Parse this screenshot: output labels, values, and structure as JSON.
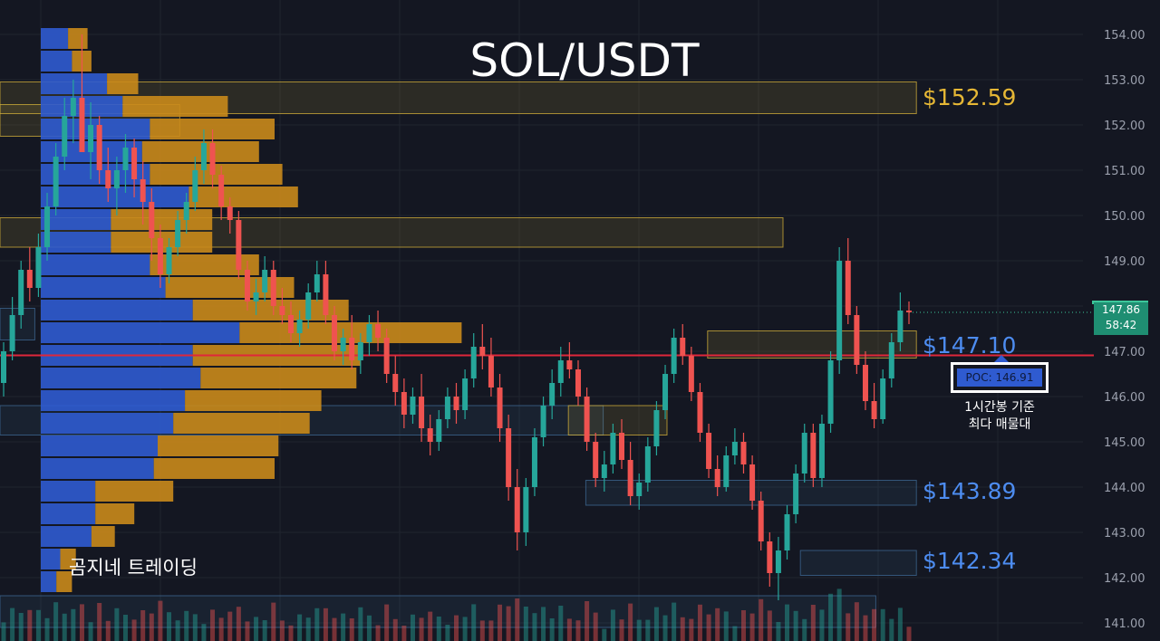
{
  "header": {
    "title": "SOL/USDT"
  },
  "brand": {
    "label": "곰지네 트레이딩"
  },
  "levels": [
    {
      "label": "$152.59",
      "price": 152.59,
      "color": "#e6b735"
    },
    {
      "label": "$147.10",
      "price": 147.1,
      "color": "#4d8cf0"
    },
    {
      "label": "$143.89",
      "price": 143.89,
      "color": "#4d8cf0"
    },
    {
      "label": "$142.34",
      "price": 142.34,
      "color": "#4d8cf0"
    }
  ],
  "poc": {
    "label": "POC: 146.91",
    "price": 146.91,
    "color": "#e0273b",
    "note_line1": "1시간봉 기준",
    "note_line2": "최다 매물대"
  },
  "current_price": {
    "price": "147.86",
    "countdown": "58:42",
    "color": "#1f8e72"
  },
  "colors": {
    "up": "#26a69a",
    "down": "#ef5350",
    "background": "#141722",
    "profile_blue": "#2f5bd0",
    "profile_orange": "#c98a1b",
    "zone_yellow": "#d4b13a",
    "zone_blue": "#3d6a96"
  },
  "chart_data": {
    "type": "candlestick",
    "title": "SOL/USDT",
    "y_axis": {
      "position": "right",
      "ticks": [
        "154.00",
        "153.00",
        "152.00",
        "151.00",
        "150.00",
        "149.00",
        "148.00",
        "147.00",
        "146.00",
        "145.00",
        "144.00",
        "143.00",
        "142.00",
        "141.00"
      ],
      "ylim": [
        140.6,
        154.6
      ]
    },
    "grid": true,
    "candles_ohlc": [
      [
        146.3,
        147.2,
        146.0,
        147.0
      ],
      [
        147.0,
        148.2,
        146.8,
        147.8
      ],
      [
        147.8,
        149.0,
        147.5,
        148.8
      ],
      [
        148.8,
        149.3,
        148.1,
        148.4
      ],
      [
        148.4,
        149.6,
        148.2,
        149.3
      ],
      [
        149.3,
        150.5,
        149.0,
        150.2
      ],
      [
        150.2,
        151.6,
        150.0,
        151.3
      ],
      [
        151.3,
        152.6,
        151.0,
        152.2
      ],
      [
        152.2,
        153.0,
        151.6,
        152.6
      ],
      [
        152.6,
        154.0,
        152.2,
        151.4
      ],
      [
        151.4,
        152.5,
        150.8,
        152.0
      ],
      [
        152.0,
        152.2,
        150.7,
        151.0
      ],
      [
        151.0,
        151.5,
        150.3,
        150.6
      ],
      [
        150.6,
        151.3,
        150.0,
        151.0
      ],
      [
        151.0,
        151.8,
        150.5,
        151.5
      ],
      [
        151.5,
        151.7,
        150.4,
        150.8
      ],
      [
        150.8,
        151.2,
        149.8,
        150.3
      ],
      [
        150.3,
        150.6,
        149.0,
        149.5
      ],
      [
        149.5,
        149.8,
        148.4,
        148.7
      ],
      [
        148.7,
        149.5,
        148.5,
        149.3
      ],
      [
        149.3,
        150.1,
        149.1,
        149.9
      ],
      [
        149.9,
        150.5,
        149.6,
        150.3
      ],
      [
        150.3,
        151.3,
        150.1,
        151.0
      ],
      [
        151.0,
        151.9,
        150.7,
        151.6
      ],
      [
        151.6,
        151.9,
        150.6,
        150.9
      ],
      [
        150.9,
        151.1,
        149.9,
        150.2
      ],
      [
        150.2,
        150.4,
        149.6,
        149.9
      ],
      [
        149.9,
        150.1,
        148.6,
        148.8
      ],
      [
        148.8,
        149.0,
        147.9,
        148.1
      ],
      [
        148.1,
        148.6,
        147.8,
        148.3
      ],
      [
        148.3,
        149.1,
        148.1,
        148.8
      ],
      [
        148.8,
        149.0,
        147.8,
        148.0
      ],
      [
        148.0,
        148.4,
        147.6,
        147.8
      ],
      [
        147.8,
        148.1,
        147.2,
        147.4
      ],
      [
        147.4,
        147.9,
        147.1,
        147.7
      ],
      [
        147.7,
        148.5,
        147.5,
        148.3
      ],
      [
        148.3,
        149.0,
        148.1,
        148.7
      ],
      [
        148.7,
        149.0,
        147.6,
        147.8
      ],
      [
        147.8,
        148.0,
        146.8,
        147.0
      ],
      [
        147.0,
        147.5,
        146.7,
        147.3
      ],
      [
        147.3,
        147.8,
        146.6,
        146.8
      ],
      [
        146.8,
        147.4,
        146.5,
        147.2
      ],
      [
        147.2,
        147.8,
        146.9,
        147.6
      ],
      [
        147.6,
        147.9,
        147.0,
        147.3
      ],
      [
        147.3,
        147.5,
        146.3,
        146.5
      ],
      [
        146.5,
        146.9,
        145.8,
        146.1
      ],
      [
        146.1,
        146.4,
        145.3,
        145.6
      ],
      [
        145.6,
        146.2,
        145.4,
        146.0
      ],
      [
        146.0,
        146.5,
        145.0,
        145.3
      ],
      [
        145.3,
        145.6,
        144.7,
        145.0
      ],
      [
        145.0,
        145.7,
        144.8,
        145.5
      ],
      [
        145.5,
        146.2,
        145.3,
        146.0
      ],
      [
        146.0,
        146.3,
        145.4,
        145.7
      ],
      [
        145.7,
        146.6,
        145.5,
        146.4
      ],
      [
        146.4,
        147.4,
        146.2,
        147.1
      ],
      [
        147.1,
        147.6,
        146.6,
        146.9
      ],
      [
        146.9,
        147.3,
        146.0,
        146.2
      ],
      [
        146.2,
        146.5,
        145.0,
        145.3
      ],
      [
        145.3,
        145.6,
        143.7,
        144.0
      ],
      [
        144.0,
        144.4,
        142.6,
        143.0
      ],
      [
        143.0,
        144.2,
        142.7,
        144.0
      ],
      [
        144.0,
        145.3,
        143.8,
        145.1
      ],
      [
        145.1,
        146.0,
        144.9,
        145.8
      ],
      [
        145.8,
        146.6,
        145.5,
        146.3
      ],
      [
        146.3,
        147.1,
        146.0,
        146.8
      ],
      [
        146.8,
        147.2,
        146.4,
        146.6
      ],
      [
        146.6,
        146.8,
        145.8,
        146.0
      ],
      [
        146.0,
        146.2,
        144.8,
        145.0
      ],
      [
        145.0,
        145.2,
        144.0,
        144.2
      ],
      [
        144.2,
        144.8,
        143.9,
        144.5
      ],
      [
        144.5,
        145.4,
        144.3,
        145.2
      ],
      [
        145.2,
        145.5,
        144.4,
        144.6
      ],
      [
        144.6,
        145.0,
        143.6,
        143.8
      ],
      [
        143.8,
        144.3,
        143.5,
        144.1
      ],
      [
        144.1,
        145.1,
        143.9,
        144.9
      ],
      [
        144.9,
        145.9,
        144.7,
        145.7
      ],
      [
        145.7,
        146.7,
        145.5,
        146.5
      ],
      [
        146.5,
        147.5,
        146.3,
        147.3
      ],
      [
        147.3,
        147.6,
        146.7,
        146.9
      ],
      [
        146.9,
        147.1,
        145.9,
        146.1
      ],
      [
        146.1,
        146.3,
        145.0,
        145.2
      ],
      [
        145.2,
        145.4,
        144.2,
        144.4
      ],
      [
        144.4,
        144.7,
        143.8,
        144.0
      ],
      [
        144.0,
        144.9,
        143.9,
        144.7
      ],
      [
        144.7,
        145.3,
        144.5,
        145.0
      ],
      [
        145.0,
        145.2,
        144.3,
        144.5
      ],
      [
        144.5,
        144.7,
        143.5,
        143.7
      ],
      [
        143.7,
        143.9,
        142.6,
        142.8
      ],
      [
        142.8,
        143.0,
        141.8,
        142.1
      ],
      [
        142.1,
        142.9,
        141.5,
        142.6
      ],
      [
        142.6,
        143.6,
        142.4,
        143.4
      ],
      [
        143.4,
        144.5,
        143.2,
        144.3
      ],
      [
        144.3,
        145.4,
        144.1,
        145.2
      ],
      [
        145.2,
        145.4,
        144.0,
        144.2
      ],
      [
        144.2,
        145.6,
        144.0,
        145.4
      ],
      [
        145.4,
        147.0,
        145.2,
        146.8
      ],
      [
        146.8,
        149.3,
        146.5,
        149.0
      ],
      [
        149.0,
        149.5,
        147.6,
        147.8
      ],
      [
        147.8,
        148.0,
        146.5,
        146.7
      ],
      [
        146.7,
        147.0,
        145.7,
        145.9
      ],
      [
        145.9,
        146.3,
        145.3,
        145.5
      ],
      [
        145.5,
        146.6,
        145.4,
        146.4
      ],
      [
        146.4,
        147.4,
        146.2,
        147.2
      ],
      [
        147.2,
        148.3,
        147.0,
        147.9
      ],
      [
        147.9,
        148.1,
        147.6,
        147.86
      ]
    ],
    "volume_profile_rows": [
      {
        "price": 153.9,
        "buy": 0.07,
        "sell": 0.05
      },
      {
        "price": 153.4,
        "buy": 0.08,
        "sell": 0.05
      },
      {
        "price": 152.9,
        "buy": 0.17,
        "sell": 0.08
      },
      {
        "price": 152.4,
        "buy": 0.21,
        "sell": 0.27
      },
      {
        "price": 151.9,
        "buy": 0.28,
        "sell": 0.32
      },
      {
        "price": 151.4,
        "buy": 0.26,
        "sell": 0.3
      },
      {
        "price": 150.9,
        "buy": 0.28,
        "sell": 0.34
      },
      {
        "price": 150.4,
        "buy": 0.38,
        "sell": 0.28
      },
      {
        "price": 149.9,
        "buy": 0.18,
        "sell": 0.26
      },
      {
        "price": 149.4,
        "buy": 0.18,
        "sell": 0.26
      },
      {
        "price": 148.9,
        "buy": 0.28,
        "sell": 0.28
      },
      {
        "price": 148.4,
        "buy": 0.32,
        "sell": 0.33
      },
      {
        "price": 147.9,
        "buy": 0.39,
        "sell": 0.4
      },
      {
        "price": 147.4,
        "buy": 0.51,
        "sell": 0.57
      },
      {
        "price": 146.9,
        "buy": 0.39,
        "sell": 0.43
      },
      {
        "price": 146.4,
        "buy": 0.41,
        "sell": 0.4
      },
      {
        "price": 145.9,
        "buy": 0.37,
        "sell": 0.35
      },
      {
        "price": 145.4,
        "buy": 0.34,
        "sell": 0.35
      },
      {
        "price": 144.9,
        "buy": 0.3,
        "sell": 0.31
      },
      {
        "price": 144.4,
        "buy": 0.29,
        "sell": 0.31
      },
      {
        "price": 143.9,
        "buy": 0.14,
        "sell": 0.2
      },
      {
        "price": 143.4,
        "buy": 0.14,
        "sell": 0.1
      },
      {
        "price": 142.9,
        "buy": 0.13,
        "sell": 0.06
      },
      {
        "price": 142.4,
        "buy": 0.05,
        "sell": 0.04
      },
      {
        "price": 141.9,
        "buy": 0.04,
        "sell": 0.04
      }
    ],
    "zones": [
      {
        "type": "supply",
        "top": 152.95,
        "bottom": 152.25,
        "x_start": 0.0,
        "x_end": 0.79
      },
      {
        "type": "supply",
        "top": 152.45,
        "bottom": 151.75,
        "x_start": 0.0,
        "x_end": 0.155
      },
      {
        "type": "supply",
        "top": 149.95,
        "bottom": 149.3,
        "x_start": 0.0,
        "x_end": 0.675
      },
      {
        "type": "demand",
        "top": 147.95,
        "bottom": 147.25,
        "x_start": 0.0,
        "x_end": 0.03
      },
      {
        "type": "demand",
        "top": 145.8,
        "bottom": 145.15,
        "x_start": 0.0,
        "x_end": 0.52
      },
      {
        "type": "supply",
        "top": 145.8,
        "bottom": 145.15,
        "x_start": 0.49,
        "x_end": 0.575
      },
      {
        "type": "supply",
        "top": 147.45,
        "bottom": 146.85,
        "x_start": 0.61,
        "x_end": 0.79
      },
      {
        "type": "demand",
        "top": 144.15,
        "bottom": 143.6,
        "x_start": 0.505,
        "x_end": 0.79
      },
      {
        "type": "demand",
        "top": 142.6,
        "bottom": 142.05,
        "x_start": 0.69,
        "x_end": 0.79
      },
      {
        "type": "demand",
        "top": 141.6,
        "bottom": 140.9,
        "x_start": 0.0,
        "x_end": 0.755
      }
    ]
  }
}
